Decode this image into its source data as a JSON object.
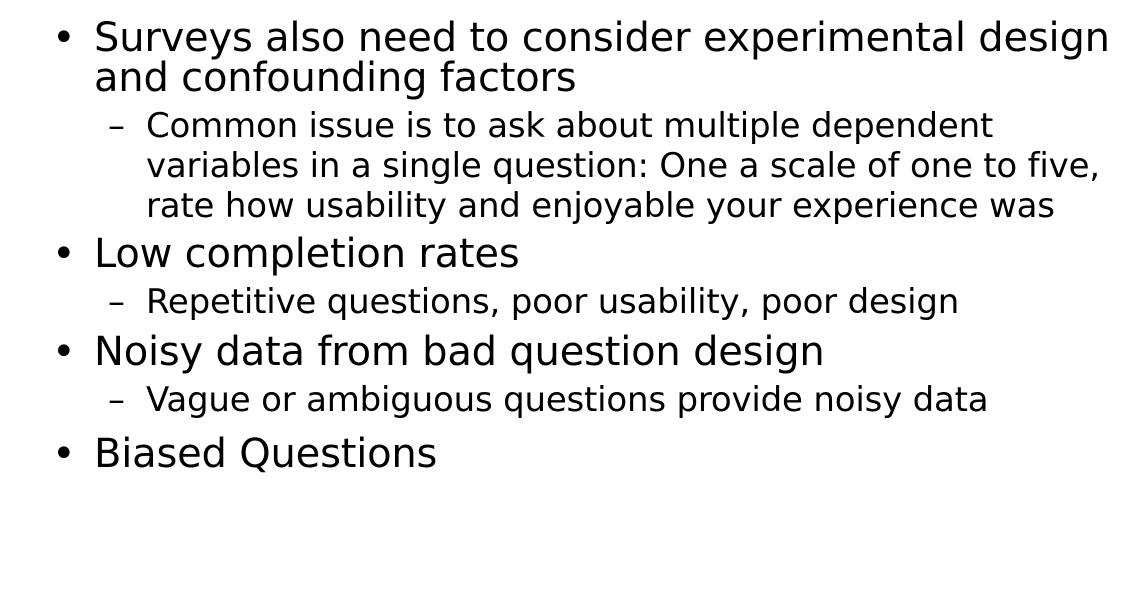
{
  "slide": {
    "bullets": [
      {
        "text": "Surveys also need to consider experimental design and confounding factors",
        "sub": [
          "Common issue is to ask about multiple dependent variables in a single question: One a scale of one to five, rate how usability and enjoyable your experience was"
        ]
      },
      {
        "text": "Low completion rates",
        "sub": [
          "Repetitive questions, poor usability, poor design"
        ]
      },
      {
        "text": "Noisy data from bad question design",
        "sub": [
          "Vague or ambiguous questions provide noisy data"
        ]
      },
      {
        "text": "Biased Questions",
        "sub": []
      }
    ],
    "bullet_symbol": "•",
    "sub_bullet_symbol": "–"
  }
}
